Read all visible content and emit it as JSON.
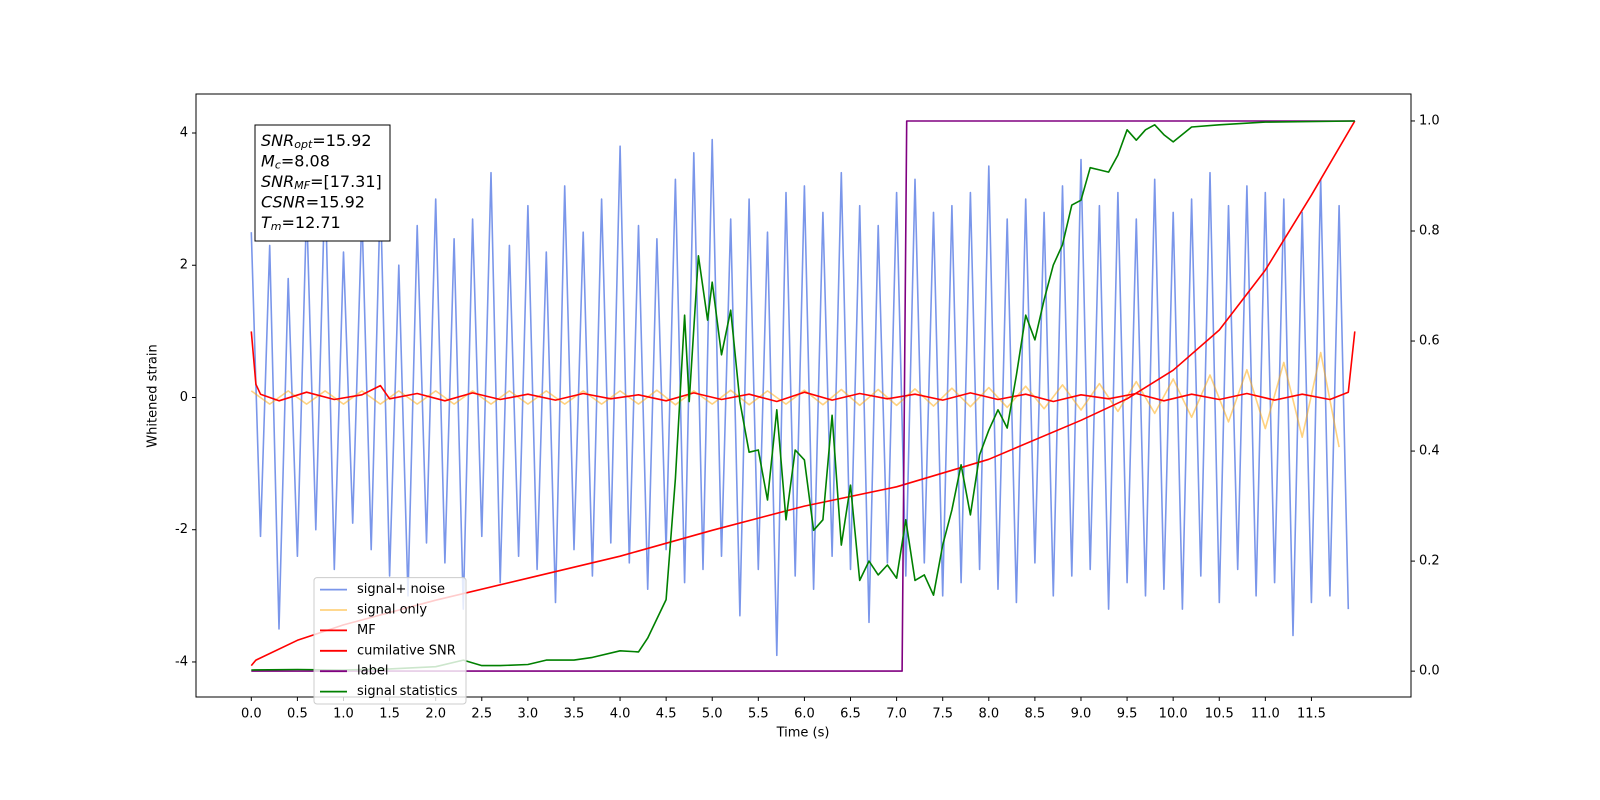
{
  "chart_data": {
    "type": "line",
    "x_label": "Time (s)",
    "y_label": "Whitened strain",
    "xlim": [
      -0.6,
      12.58
    ],
    "ylim": [
      -4.53,
      4.59
    ],
    "y2lim": [
      -0.047,
      1.049
    ],
    "xticks": [
      {
        "value": 0,
        "label": "0.0"
      },
      0.5,
      {
        "value": 1,
        "label": "1.0"
      },
      1.5,
      {
        "value": 2,
        "label": "2.0"
      },
      2.5,
      {
        "value": 3,
        "label": "3.0"
      },
      3.5,
      {
        "value": 4,
        "label": "4.0"
      },
      4.5,
      {
        "value": 5,
        "label": "5.0"
      },
      5.5,
      {
        "value": 6,
        "label": "6.0"
      },
      6.5,
      {
        "value": 7,
        "label": "7.0"
      },
      7.5,
      {
        "value": 8,
        "label": "8.0"
      },
      8.5,
      {
        "value": 9,
        "label": "9.0"
      },
      9.5,
      {
        "value": 10,
        "label": "10.0"
      },
      10.5,
      {
        "value": 11,
        "label": "11.0"
      },
      11.5
    ],
    "yticks": [
      -4,
      -2,
      0,
      2,
      4
    ],
    "y2ticks": [
      {
        "value": 0,
        "label": "0.0"
      },
      0.2,
      0.4,
      0.6,
      0.8,
      {
        "value": 1,
        "label": "1.0"
      }
    ],
    "legend": "lower left",
    "annotations": [
      {
        "text": "SNR",
        "sub": "opt",
        "rest": "=15.92"
      },
      {
        "text": "M",
        "sub": "c",
        "rest": "=8.08"
      },
      {
        "text": "SNR",
        "sub": "MF",
        "rest": "=[17.31]"
      },
      {
        "text": "CSNR",
        "rest": "=15.92"
      },
      {
        "text": "T",
        "sub": "m",
        "rest": "=12.71"
      }
    ],
    "series": [
      {
        "name": "signal+ noise",
        "color": "#4169e1",
        "alpha": 0.7,
        "x": [
          0,
          0.1,
          0.2,
          0.3,
          0.4,
          0.5,
          0.6,
          0.7,
          0.8,
          0.9,
          1.0,
          1.1,
          1.2,
          1.3,
          1.4,
          1.5,
          1.6,
          1.7,
          1.8,
          1.9,
          2.0,
          2.1,
          2.2,
          2.3,
          2.4,
          2.5,
          2.6,
          2.7,
          2.8,
          2.9,
          3.0,
          3.1,
          3.2,
          3.3,
          3.4,
          3.5,
          3.6,
          3.7,
          3.8,
          3.9,
          4.0,
          4.1,
          4.2,
          4.3,
          4.4,
          4.5,
          4.6,
          4.7,
          4.8,
          4.9,
          5.0,
          5.1,
          5.2,
          5.3,
          5.4,
          5.5,
          5.6,
          5.7,
          5.8,
          5.9,
          6.0,
          6.1,
          6.2,
          6.3,
          6.4,
          6.5,
          6.6,
          6.7,
          6.8,
          6.9,
          7.0,
          7.1,
          7.2,
          7.3,
          7.4,
          7.5,
          7.6,
          7.7,
          7.8,
          7.9,
          8.0,
          8.1,
          8.2,
          8.3,
          8.4,
          8.5,
          8.6,
          8.7,
          8.8,
          8.9,
          9.0,
          9.1,
          9.2,
          9.3,
          9.4,
          9.5,
          9.6,
          9.7,
          9.8,
          9.9,
          10.0,
          10.1,
          10.2,
          10.3,
          10.4,
          10.5,
          10.6,
          10.7,
          10.8,
          10.9,
          11.0,
          11.1,
          11.2,
          11.3,
          11.4,
          11.5,
          11.6,
          11.7,
          11.8,
          11.9
        ],
        "values": [
          2.5,
          -2.1,
          2.3,
          -3.5,
          1.8,
          -2.4,
          2.9,
          -2.0,
          3.3,
          -2.6,
          2.2,
          -1.9,
          2.8,
          -2.3,
          3.1,
          -2.7,
          2.0,
          -3.0,
          2.6,
          -2.2,
          3.0,
          -2.5,
          2.4,
          -3.2,
          2.7,
          -2.1,
          3.4,
          -2.8,
          2.3,
          -2.4,
          2.9,
          -2.6,
          2.2,
          -3.1,
          3.2,
          -2.3,
          2.5,
          -2.7,
          3.0,
          -2.2,
          3.8,
          -2.5,
          2.6,
          -2.9,
          2.4,
          -2.3,
          3.3,
          -2.8,
          3.7,
          -2.6,
          3.9,
          -2.4,
          2.7,
          -3.3,
          3.0,
          -2.6,
          2.5,
          -3.9,
          3.1,
          -2.7,
          3.2,
          -2.9,
          2.8,
          -2.4,
          3.4,
          -2.6,
          2.9,
          -3.4,
          2.6,
          -2.5,
          3.1,
          -2.7,
          3.3,
          -2.5,
          2.8,
          -3.0,
          2.9,
          -2.8,
          3.1,
          -2.6,
          3.5,
          -2.9,
          2.7,
          -3.1,
          3.0,
          -2.5,
          2.8,
          -3.0,
          3.2,
          -2.7,
          3.6,
          -2.6,
          2.9,
          -3.2,
          3.1,
          -2.8,
          2.7,
          -3.0,
          3.3,
          -2.9,
          2.8,
          -3.2,
          3.0,
          -2.7,
          3.4,
          -3.1,
          2.9,
          -2.6,
          3.2,
          -3.0,
          3.1,
          -2.8,
          3.0,
          -3.6,
          2.8,
          -3.1,
          3.3,
          -3.0,
          2.9,
          -3.2
        ]
      },
      {
        "name": "signal only",
        "color": "orange",
        "alpha": 0.5,
        "x": [
          0,
          0.2,
          0.4,
          0.6,
          0.8,
          1.0,
          1.2,
          1.4,
          1.6,
          1.8,
          2.0,
          2.2,
          2.4,
          2.6,
          2.8,
          3.0,
          3.2,
          3.4,
          3.6,
          3.8,
          4.0,
          4.2,
          4.4,
          4.6,
          4.8,
          5.0,
          5.2,
          5.4,
          5.6,
          5.8,
          6.0,
          6.2,
          6.4,
          6.6,
          6.8,
          7.0,
          7.2,
          7.4,
          7.6,
          7.8,
          8.0,
          8.2,
          8.4,
          8.6,
          8.8,
          9.0,
          9.2,
          9.4,
          9.6,
          9.8,
          10.0,
          10.2,
          10.4,
          10.6,
          10.8,
          11.0,
          11.2,
          11.4,
          11.6,
          11.8
        ],
        "values": [
          0.1,
          -0.1,
          0.1,
          -0.1,
          0.1,
          -0.1,
          0.1,
          -0.1,
          0.1,
          -0.1,
          0.1,
          -0.1,
          0.1,
          -0.1,
          0.1,
          -0.1,
          0.1,
          -0.1,
          0.1,
          -0.1,
          0.1,
          -0.1,
          0.11,
          -0.11,
          0.1,
          -0.1,
          0.11,
          -0.11,
          0.1,
          -0.1,
          0.11,
          -0.11,
          0.12,
          -0.12,
          0.12,
          -0.12,
          0.13,
          -0.13,
          0.14,
          -0.14,
          0.15,
          -0.15,
          0.17,
          -0.17,
          0.19,
          -0.19,
          0.21,
          -0.21,
          0.24,
          -0.24,
          0.28,
          -0.3,
          0.34,
          -0.37,
          0.42,
          -0.47,
          0.53,
          -0.6,
          0.68,
          -0.75
        ]
      },
      {
        "name": "MF",
        "color": "red",
        "alpha": 1,
        "x": [
          0,
          0.05,
          0.1,
          0.3,
          0.6,
          0.9,
          1.2,
          1.4,
          1.5,
          1.8,
          2.1,
          2.4,
          2.7,
          3.0,
          3.3,
          3.6,
          3.9,
          4.2,
          4.5,
          4.8,
          5.1,
          5.4,
          5.7,
          6.0,
          6.3,
          6.6,
          6.9,
          7.2,
          7.5,
          7.8,
          8.1,
          8.4,
          8.7,
          9.0,
          9.3,
          9.6,
          9.9,
          10.2,
          10.5,
          10.8,
          11.1,
          11.4,
          11.7,
          11.9,
          11.97
        ],
        "values": [
          1.0,
          0.2,
          0.05,
          -0.05,
          0.08,
          -0.03,
          0.04,
          0.18,
          -0.02,
          0.06,
          -0.05,
          0.07,
          -0.03,
          0.05,
          -0.04,
          0.06,
          -0.02,
          0.04,
          -0.05,
          0.07,
          -0.03,
          0.05,
          -0.06,
          0.08,
          -0.04,
          0.06,
          -0.02,
          0.05,
          -0.04,
          0.07,
          -0.03,
          0.05,
          -0.06,
          0.04,
          -0.02,
          0.06,
          -0.05,
          0.05,
          -0.03,
          0.06,
          -0.04,
          0.05,
          -0.03,
          0.08,
          1.0
        ]
      },
      {
        "name": "cumilative SNR",
        "color": "red",
        "alpha": 1,
        "axis": "y2",
        "x": [
          0,
          0.05,
          0.5,
          1,
          2,
          3,
          4,
          5,
          6,
          7,
          8,
          9,
          9.5,
          10,
          10.5,
          11,
          11.5,
          11.97
        ],
        "values": [
          0.01,
          0.02,
          0.056,
          0.084,
          0.129,
          0.169,
          0.209,
          0.256,
          0.3,
          0.335,
          0.385,
          0.456,
          0.495,
          0.547,
          0.62,
          0.729,
          0.865,
          1.0
        ]
      },
      {
        "name": "label",
        "color": "purple",
        "alpha": 1,
        "axis": "y2",
        "x": [
          0,
          7.06,
          7.11,
          11.97
        ],
        "values": [
          0,
          0,
          1,
          1
        ]
      },
      {
        "name": "signal statistics",
        "color": "green",
        "alpha": 1,
        "axis": "y2",
        "x": [
          0,
          0.5,
          1,
          1.5,
          2,
          2.3,
          2.5,
          2.7,
          3,
          3.2,
          3.5,
          3.7,
          4,
          4.2,
          4.3,
          4.5,
          4.6,
          4.7,
          4.75,
          4.85,
          4.95,
          5.0,
          5.1,
          5.2,
          5.3,
          5.4,
          5.5,
          5.6,
          5.7,
          5.8,
          5.9,
          6.0,
          6.1,
          6.2,
          6.3,
          6.4,
          6.5,
          6.6,
          6.7,
          6.8,
          6.9,
          7.0,
          7.1,
          7.2,
          7.3,
          7.4,
          7.5,
          7.6,
          7.7,
          7.8,
          7.9,
          8.0,
          8.1,
          8.2,
          8.3,
          8.4,
          8.5,
          8.6,
          8.7,
          8.8,
          8.9,
          9.0,
          9.1,
          9.2,
          9.3,
          9.4,
          9.5,
          9.6,
          9.7,
          9.8,
          9.9,
          10.0,
          10.2,
          10.5,
          11.0,
          11.97
        ],
        "values": [
          0.002,
          0.003,
          0.002,
          0.004,
          0.008,
          0.02,
          0.01,
          0.01,
          0.012,
          0.02,
          0.02,
          0.025,
          0.037,
          0.035,
          0.06,
          0.13,
          0.35,
          0.647,
          0.49,
          0.755,
          0.638,
          0.707,
          0.575,
          0.656,
          0.49,
          0.398,
          0.402,
          0.311,
          0.475,
          0.275,
          0.402,
          0.384,
          0.256,
          0.275,
          0.465,
          0.229,
          0.338,
          0.165,
          0.2,
          0.175,
          0.193,
          0.169,
          0.275,
          0.165,
          0.175,
          0.138,
          0.229,
          0.293,
          0.375,
          0.284,
          0.393,
          0.438,
          0.475,
          0.442,
          0.538,
          0.647,
          0.602,
          0.675,
          0.738,
          0.775,
          0.847,
          0.856,
          0.915,
          0.911,
          0.907,
          0.938,
          0.984,
          0.965,
          0.984,
          0.993,
          0.975,
          0.962,
          0.989,
          0.993,
          0.998,
          1.0
        ]
      }
    ]
  }
}
